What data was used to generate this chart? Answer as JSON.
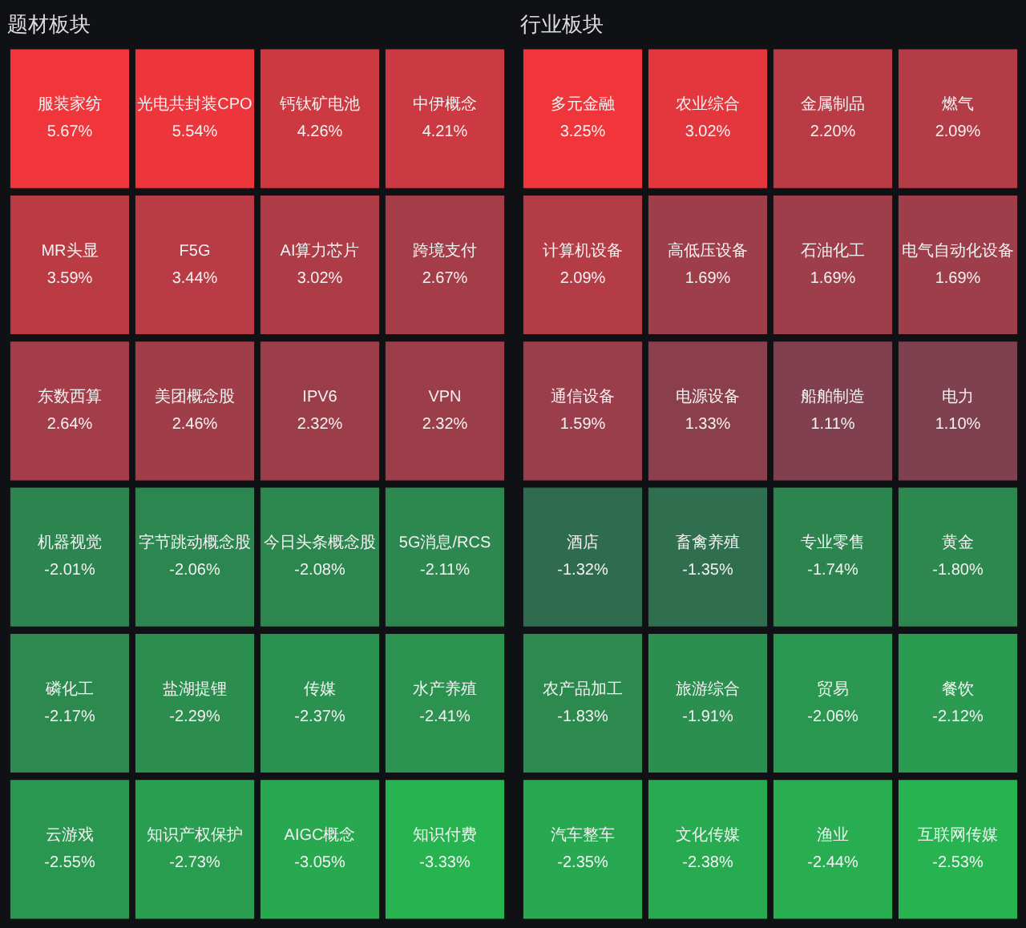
{
  "chart_data": [
    {
      "type": "other",
      "title": "题材板块",
      "categories": [
        "服装家纺",
        "光电共封装CPO",
        "钙钛矿电池",
        "中伊概念",
        "MR头显",
        "F5G",
        "AI算力芯片",
        "跨境支付",
        "东数西算",
        "美团概念股",
        "IPV6",
        "VPN",
        "机器视觉",
        "字节跳动概念股",
        "今日头条概念股",
        "5G消息/RCS",
        "磷化工",
        "盐湖提锂",
        "传媒",
        "水产养殖",
        "云游戏",
        "知识产权保护",
        "AIGC概念",
        "知识付费"
      ],
      "values": [
        5.67,
        5.54,
        4.26,
        4.21,
        3.59,
        3.44,
        3.02,
        2.67,
        2.64,
        2.46,
        2.32,
        2.32,
        -2.01,
        -2.06,
        -2.08,
        -2.11,
        -2.17,
        -2.29,
        -2.37,
        -2.41,
        -2.55,
        -2.73,
        -3.05,
        -3.33
      ],
      "value_labels": [
        "5.67%",
        "5.54%",
        "4.26%",
        "4.21%",
        "3.59%",
        "3.44%",
        "3.02%",
        "2.67%",
        "2.64%",
        "2.46%",
        "2.32%",
        "2.32%",
        "-2.01%",
        "-2.06%",
        "-2.08%",
        "-2.11%",
        "-2.17%",
        "-2.29%",
        "-2.37%",
        "-2.41%",
        "-2.55%",
        "-2.73%",
        "-3.05%",
        "-3.33%"
      ]
    },
    {
      "type": "other",
      "title": "行业板块",
      "categories": [
        "多元金融",
        "农业综合",
        "金属制品",
        "燃气",
        "计算机设备",
        "高低压设备",
        "石油化工",
        "电气自动化设备",
        "通信设备",
        "电源设备",
        "船舶制造",
        "电力",
        "酒店",
        "畜禽养殖",
        "专业零售",
        "黄金",
        "农产品加工",
        "旅游综合",
        "贸易",
        "餐饮",
        "汽车整车",
        "文化传媒",
        "渔业",
        "互联网传媒"
      ],
      "values": [
        3.25,
        3.02,
        2.2,
        2.09,
        2.09,
        1.69,
        1.69,
        1.69,
        1.59,
        1.33,
        1.11,
        1.1,
        -1.32,
        -1.35,
        -1.74,
        -1.8,
        -1.83,
        -1.91,
        -2.06,
        -2.12,
        -2.35,
        -2.38,
        -2.44,
        -2.53
      ],
      "value_labels": [
        "3.25%",
        "3.02%",
        "2.20%",
        "2.09%",
        "2.09%",
        "1.69%",
        "1.69%",
        "1.69%",
        "1.59%",
        "1.33%",
        "1.11%",
        "1.10%",
        "-1.32%",
        "-1.35%",
        "-1.74%",
        "-1.80%",
        "-1.83%",
        "-1.91%",
        "-2.06%",
        "-2.12%",
        "-2.35%",
        "-2.38%",
        "-2.44%",
        "-2.53%"
      ]
    }
  ]
}
